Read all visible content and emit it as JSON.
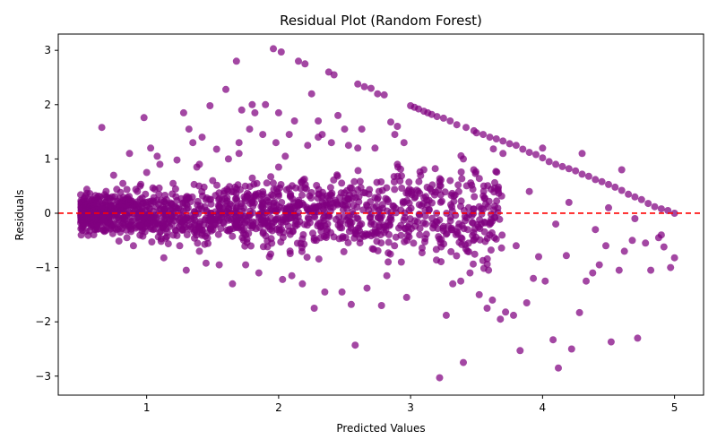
{
  "chart_data": {
    "type": "scatter",
    "title": "Residual Plot (Random Forest)",
    "xlabel": "Predicted Values",
    "ylabel": "Residuals",
    "xlim": [
      0.33,
      5.22
    ],
    "ylim": [
      -3.35,
      3.3
    ],
    "xticks": [
      1,
      2,
      3,
      4,
      5
    ],
    "yticks": [
      -3,
      -2,
      -1,
      0,
      1,
      2,
      3
    ],
    "grid": false,
    "point_color": "#800080",
    "reference_line": {
      "y": 0,
      "color": "#ff0000",
      "style": "dashed"
    },
    "points": [
      [
        0.5,
        0.34
      ],
      [
        0.53,
        0.05
      ],
      [
        0.55,
        -0.05
      ],
      [
        0.6,
        0.15
      ],
      [
        0.62,
        0.02
      ],
      [
        0.66,
        1.58
      ],
      [
        0.7,
        0.3
      ],
      [
        0.72,
        -0.2
      ],
      [
        0.75,
        0.7
      ],
      [
        0.78,
        0.1
      ],
      [
        0.8,
        -0.35
      ],
      [
        0.82,
        0.55
      ],
      [
        0.85,
        -0.45
      ],
      [
        0.87,
        1.1
      ],
      [
        0.88,
        0.2
      ],
      [
        0.9,
        -0.6
      ],
      [
        0.93,
        0.4
      ],
      [
        0.95,
        0.5
      ],
      [
        0.98,
        1.76
      ],
      [
        1.0,
        0.75
      ],
      [
        1.03,
        1.2
      ],
      [
        1.05,
        -0.3
      ],
      [
        1.08,
        1.05
      ],
      [
        1.1,
        0.9
      ],
      [
        1.13,
        -0.82
      ],
      [
        1.15,
        0.25
      ],
      [
        1.2,
        0.55
      ],
      [
        1.23,
        0.98
      ],
      [
        1.25,
        -0.6
      ],
      [
        1.28,
        1.85
      ],
      [
        1.3,
        -1.05
      ],
      [
        1.32,
        1.55
      ],
      [
        1.35,
        1.3
      ],
      [
        1.38,
        0.85
      ],
      [
        1.4,
        -0.7
      ],
      [
        1.42,
        1.4
      ],
      [
        1.45,
        -0.92
      ],
      [
        1.48,
        1.98
      ],
      [
        1.5,
        0.6
      ],
      [
        1.53,
        1.18
      ],
      [
        1.55,
        -0.95
      ],
      [
        1.6,
        2.28
      ],
      [
        1.62,
        1.0
      ],
      [
        1.65,
        -1.3
      ],
      [
        1.68,
        2.8
      ],
      [
        1.7,
        1.1
      ],
      [
        1.72,
        1.9
      ],
      [
        1.75,
        -0.95
      ],
      [
        1.78,
        1.55
      ],
      [
        1.8,
        2.0
      ],
      [
        1.82,
        1.85
      ],
      [
        1.85,
        -1.1
      ],
      [
        1.88,
        1.45
      ],
      [
        1.9,
        2.0
      ],
      [
        1.93,
        -0.8
      ],
      [
        1.96,
        3.03
      ],
      [
        1.98,
        1.3
      ],
      [
        2.0,
        1.85
      ],
      [
        2.02,
        2.97
      ],
      [
        2.03,
        -1.22
      ],
      [
        2.05,
        1.05
      ],
      [
        2.08,
        1.45
      ],
      [
        2.1,
        -1.15
      ],
      [
        2.12,
        1.7
      ],
      [
        2.15,
        2.8
      ],
      [
        2.18,
        -1.3
      ],
      [
        2.2,
        2.75
      ],
      [
        2.22,
        1.25
      ],
      [
        2.25,
        2.2
      ],
      [
        2.27,
        -1.75
      ],
      [
        2.3,
        1.7
      ],
      [
        2.33,
        1.45
      ],
      [
        2.35,
        -1.45
      ],
      [
        2.38,
        2.6
      ],
      [
        2.4,
        1.3
      ],
      [
        2.42,
        2.55
      ],
      [
        2.45,
        1.8
      ],
      [
        2.48,
        -1.45
      ],
      [
        2.5,
        1.55
      ],
      [
        2.53,
        1.25
      ],
      [
        2.55,
        -1.68
      ],
      [
        2.58,
        -2.43
      ],
      [
        2.6,
        2.38
      ],
      [
        2.63,
        1.55
      ],
      [
        2.65,
        2.33
      ],
      [
        2.67,
        -1.38
      ],
      [
        2.7,
        2.3
      ],
      [
        2.73,
        1.2
      ],
      [
        2.75,
        2.2
      ],
      [
        2.78,
        -1.7
      ],
      [
        2.8,
        2.18
      ],
      [
        2.82,
        -1.15
      ],
      [
        2.85,
        1.68
      ],
      [
        2.88,
        1.45
      ],
      [
        2.9,
        1.6
      ],
      [
        2.93,
        -0.9
      ],
      [
        2.95,
        1.3
      ],
      [
        2.97,
        -1.55
      ],
      [
        3.0,
        1.98
      ],
      [
        3.03,
        1.95
      ],
      [
        3.06,
        1.92
      ],
      [
        3.1,
        1.88
      ],
      [
        3.13,
        1.85
      ],
      [
        3.16,
        1.82
      ],
      [
        3.2,
        1.78
      ],
      [
        3.22,
        -3.03
      ],
      [
        3.25,
        1.75
      ],
      [
        3.27,
        -1.88
      ],
      [
        3.3,
        1.7
      ],
      [
        3.32,
        -1.3
      ],
      [
        3.35,
        1.63
      ],
      [
        3.38,
        -1.25
      ],
      [
        3.4,
        -2.75
      ],
      [
        3.42,
        1.58
      ],
      [
        3.45,
        -1.1
      ],
      [
        3.48,
        1.52
      ],
      [
        3.5,
        1.48
      ],
      [
        3.52,
        -1.5
      ],
      [
        3.55,
        1.45
      ],
      [
        3.58,
        -1.75
      ],
      [
        3.6,
        1.4
      ],
      [
        3.62,
        -1.6
      ],
      [
        3.65,
        1.37
      ],
      [
        3.68,
        -1.95
      ],
      [
        3.7,
        1.33
      ],
      [
        3.72,
        -1.82
      ],
      [
        3.75,
        1.28
      ],
      [
        3.78,
        -1.88
      ],
      [
        3.8,
        1.25
      ],
      [
        3.83,
        -2.53
      ],
      [
        3.85,
        1.18
      ],
      [
        3.88,
        -1.65
      ],
      [
        3.9,
        1.12
      ],
      [
        3.93,
        -1.2
      ],
      [
        3.95,
        1.08
      ],
      [
        3.97,
        -0.8
      ],
      [
        4.0,
        1.02
      ],
      [
        4.02,
        -1.25
      ],
      [
        4.05,
        0.95
      ],
      [
        4.08,
        -2.33
      ],
      [
        4.1,
        0.9
      ],
      [
        4.12,
        -2.85
      ],
      [
        4.15,
        0.86
      ],
      [
        4.18,
        -0.78
      ],
      [
        4.2,
        0.82
      ],
      [
        4.22,
        -2.5
      ],
      [
        4.25,
        0.78
      ],
      [
        4.28,
        -1.83
      ],
      [
        4.3,
        0.72
      ],
      [
        4.33,
        -1.25
      ],
      [
        4.35,
        0.68
      ],
      [
        4.38,
        -1.1
      ],
      [
        4.4,
        0.62
      ],
      [
        4.43,
        -0.95
      ],
      [
        4.45,
        0.58
      ],
      [
        4.48,
        -0.6
      ],
      [
        4.5,
        0.53
      ],
      [
        4.52,
        -2.37
      ],
      [
        4.55,
        0.48
      ],
      [
        4.58,
        -1.05
      ],
      [
        4.6,
        0.42
      ],
      [
        4.62,
        -0.7
      ],
      [
        4.65,
        0.35
      ],
      [
        4.68,
        -0.5
      ],
      [
        4.7,
        0.3
      ],
      [
        4.72,
        -2.3
      ],
      [
        4.75,
        0.25
      ],
      [
        4.78,
        -0.55
      ],
      [
        4.8,
        0.18
      ],
      [
        4.82,
        -1.05
      ],
      [
        4.85,
        0.12
      ],
      [
        4.88,
        -0.45
      ],
      [
        4.9,
        0.08
      ],
      [
        4.92,
        -0.62
      ],
      [
        4.95,
        0.05
      ],
      [
        4.97,
        -1.0
      ],
      [
        5.0,
        0.0
      ],
      [
        5.0,
        -0.82
      ],
      [
        4.6,
        0.8
      ],
      [
        4.3,
        1.1
      ],
      [
        4.0,
        1.2
      ],
      [
        3.7,
        1.1
      ],
      [
        3.4,
        1.0
      ],
      [
        3.1,
        0.8
      ],
      [
        2.9,
        0.9
      ],
      [
        2.6,
        1.2
      ],
      [
        2.3,
        1.4
      ],
      [
        2.0,
        0.85
      ],
      [
        1.7,
        1.3
      ],
      [
        1.4,
        0.9
      ],
      [
        4.5,
        0.1
      ],
      [
        4.2,
        0.2
      ],
      [
        3.9,
        0.4
      ],
      [
        3.6,
        -0.4
      ],
      [
        3.3,
        0.6
      ],
      [
        4.1,
        -0.2
      ],
      [
        3.8,
        -0.6
      ],
      [
        4.4,
        -0.3
      ],
      [
        4.7,
        -0.1
      ],
      [
        4.9,
        -0.4
      ]
    ]
  }
}
